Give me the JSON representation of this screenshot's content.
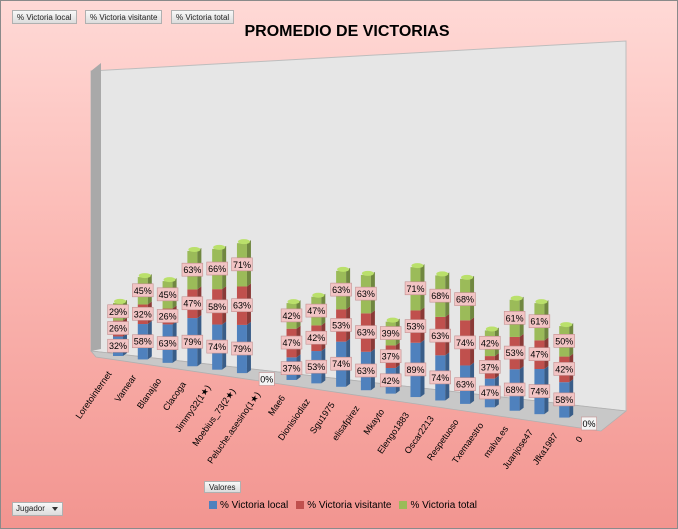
{
  "field_buttons": [
    "% Victoria local",
    "% Victoria visitante",
    "% Victoria total"
  ],
  "values_button": "Valores",
  "filter_button": "Jugador",
  "colors": {
    "local": "#4f81bd",
    "visitante": "#c0504d",
    "total": "#9bbb59",
    "zero_box": "#f4f4f4"
  },
  "chart_data": {
    "type": "bar",
    "stacked": true,
    "three_d": true,
    "title": "PROMEDIO DE VICTORIAS",
    "categories": [
      "Loretointernet",
      "Vamear",
      "Blanajao",
      "Clacoga",
      "Jimmy32(1★)",
      "Moebius_73(2★)",
      "Peluche.asesino(1★)",
      "Mae6",
      "Dionisiodiaz",
      "Sgu1975",
      "elisafpirez",
      "Mkayto",
      "Elengo1883",
      "Oscar2213",
      "Respetuoso",
      "Txemaestro",
      "malva.es",
      "Juanjose47",
      "Jfka1987",
      "0"
    ],
    "series": [
      {
        "name": "% Victoria local",
        "values": [
          32,
          58,
          63,
          79,
          74,
          79,
          0,
          37,
          53,
          74,
          63,
          42,
          89,
          74,
          63,
          47,
          68,
          74,
          58,
          0
        ]
      },
      {
        "name": "% Victoria visitante",
        "values": [
          26,
          32,
          26,
          47,
          58,
          63,
          0,
          47,
          42,
          53,
          63,
          37,
          53,
          63,
          74,
          37,
          53,
          47,
          42,
          0
        ]
      },
      {
        "name": "% Victoria total",
        "values": [
          29,
          45,
          45,
          63,
          66,
          71,
          0,
          42,
          47,
          63,
          63,
          39,
          71,
          68,
          68,
          42,
          61,
          61,
          50,
          0
        ]
      }
    ],
    "data_labels": [
      [
        "32%",
        "58%",
        "63%",
        "79%",
        "74%",
        "79%",
        "0%",
        "37%",
        "53%",
        "74%",
        "63%",
        "42%",
        "89%",
        "74%",
        "63%",
        "47%",
        "68%",
        "74%",
        "58%",
        "0%"
      ],
      [
        "26%",
        "32%",
        "26%",
        "47%",
        "58%",
        "63%",
        "",
        "47%",
        "42%",
        "53%",
        "63%",
        "37%",
        "53%",
        "63%",
        "74%",
        "37%",
        "53%",
        "47%",
        "42%",
        ""
      ],
      [
        "29%",
        "45%",
        "45%",
        "63%",
        "66%",
        "71%",
        "",
        "42%",
        "47%",
        "63%",
        "63%",
        "39%",
        "71%",
        "68%",
        "68%",
        "42%",
        "61%",
        "61%",
        "50%",
        ""
      ]
    ],
    "legend_position": "bottom",
    "grid": false
  }
}
